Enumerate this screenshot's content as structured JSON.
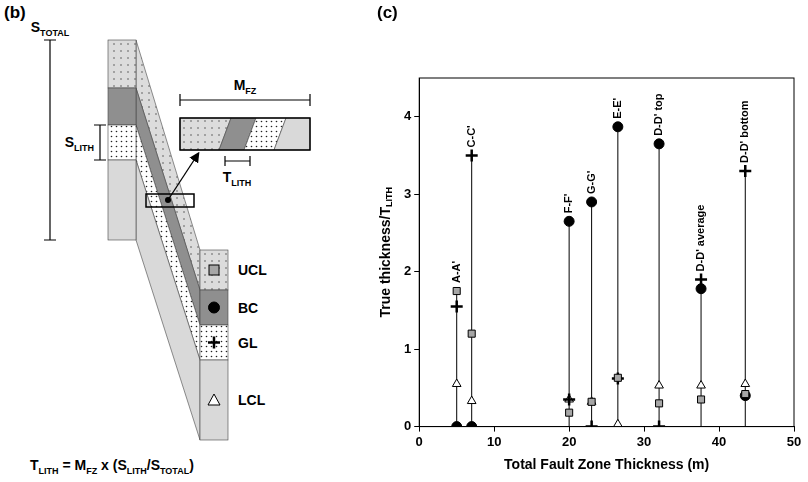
{
  "diagram": {
    "panel_label": "(b)",
    "column_height_label": {
      "text": "S",
      "sub": "TOTAL"
    },
    "layer_thickness_label": {
      "text": "S",
      "sub": "LITH"
    },
    "fault_zone_width_label": {
      "text": "M",
      "sub": "FZ"
    },
    "lithology_thickness_label": {
      "text": "T",
      "sub": "LITH"
    },
    "formula": [
      {
        "text": "T",
        "sub": "LITH"
      },
      {
        "text": " = M",
        "sub": "FZ"
      },
      {
        "text": " x (S",
        "sub": "LITH"
      },
      {
        "text": "/S",
        "sub": "TOTAL"
      },
      {
        "text": ")"
      }
    ]
  },
  "chart_data": {
    "type": "scatter",
    "panel_label": "(c)",
    "x_label": "Total Fault Zone Thickness (m)",
    "y_label": {
      "text": "True thickness/T",
      "sub": "LITH"
    },
    "x": [
      5,
      7,
      20,
      23,
      26.5,
      32,
      37.6,
      43.5
    ],
    "annotations": [
      "A-A'",
      "C-C'",
      "F-F'",
      "G-G'",
      "E-E'",
      "D-D' top",
      "D-D' average",
      "D-D' bottom"
    ],
    "series": [
      {
        "name": "UCL",
        "color": "#a6a6a6",
        "marker": "square",
        "values": [
          1.75,
          1.2,
          0.18,
          0.32,
          0.63,
          0.3,
          0.35,
          0.42
        ]
      },
      {
        "name": "BC",
        "color": "#000000",
        "marker": "circle",
        "values": [
          0,
          0,
          2.65,
          2.9,
          3.87,
          3.65,
          1.78,
          0.4
        ]
      },
      {
        "name": "GL",
        "color": "#000000",
        "marker": "cross",
        "values": [
          1.55,
          3.5,
          0.35,
          0,
          0.62,
          0,
          1.9,
          3.3
        ]
      },
      {
        "name": "LCL",
        "color": "#ffffff",
        "marker": "triangle",
        "values": [
          0.55,
          0.33,
          0.35,
          0.32,
          0.03,
          0.53,
          0.53,
          0.55
        ]
      }
    ],
    "xlim": [
      0,
      50
    ],
    "xticks": [
      0,
      10,
      20,
      30,
      40,
      50
    ],
    "ylim": [
      0,
      4.5
    ],
    "yticks": [
      0,
      1,
      2,
      3,
      4
    ],
    "grid": false
  }
}
